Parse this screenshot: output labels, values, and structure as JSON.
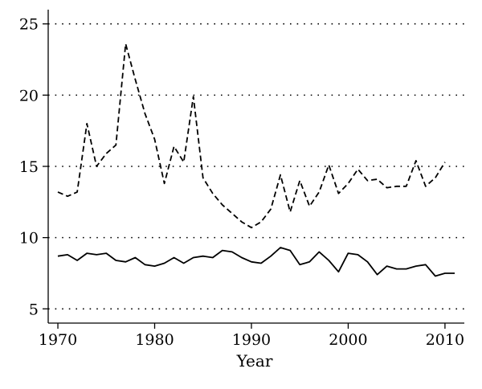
{
  "chart_data": {
    "type": "line",
    "title": "",
    "xlabel": "Year",
    "ylabel": "",
    "xlim": [
      1969,
      2012
    ],
    "ylim": [
      4,
      26
    ],
    "x_ticks": [
      1970,
      1980,
      1990,
      2000,
      2010
    ],
    "y_ticks": [
      5,
      10,
      15,
      20,
      25
    ],
    "x_tick_labels": [
      "1970",
      "1980",
      "1990",
      "2000",
      "2010"
    ],
    "y_tick_labels": [
      "5",
      "10",
      "15",
      "20",
      "25"
    ],
    "grid": "horizontal dotted",
    "legend": "none",
    "x": [
      1970,
      1971,
      1972,
      1973,
      1974,
      1975,
      1976,
      1977,
      1978,
      1979,
      1980,
      1981,
      1982,
      1983,
      1984,
      1985,
      1986,
      1987,
      1988,
      1989,
      1990,
      1991,
      1992,
      1993,
      1994,
      1995,
      1996,
      1997,
      1998,
      1999,
      2000,
      2001,
      2002,
      2003,
      2004,
      2005,
      2006,
      2007,
      2008,
      2009,
      2010,
      2011
    ],
    "series": [
      {
        "style": "dashed",
        "color": "#000000",
        "values": [
          13.2,
          12.9,
          13.2,
          18.0,
          15.0,
          15.9,
          16.5,
          23.6,
          21.1,
          18.7,
          16.9,
          13.8,
          16.4,
          15.3,
          19.9,
          14.2,
          13.1,
          12.3,
          11.7,
          11.1,
          10.7,
          11.1,
          12.0,
          14.4,
          11.8,
          14.0,
          12.2,
          13.2,
          15.1,
          13.1,
          13.8,
          14.8,
          14.0,
          14.1,
          13.5,
          13.6,
          13.6,
          15.4,
          13.6,
          14.2,
          15.3,
          null
        ]
      },
      {
        "style": "solid",
        "color": "#000000",
        "values": [
          8.7,
          8.8,
          8.4,
          8.9,
          8.8,
          8.9,
          8.4,
          8.3,
          8.6,
          8.1,
          8.0,
          8.2,
          8.6,
          8.2,
          8.6,
          8.7,
          8.6,
          9.1,
          9.0,
          8.6,
          8.3,
          8.2,
          8.7,
          9.3,
          9.1,
          8.1,
          8.3,
          9.0,
          8.4,
          7.6,
          8.9,
          8.8,
          8.3,
          7.4,
          8.0,
          7.8,
          7.8,
          8.0,
          8.1,
          7.3,
          7.5,
          7.5
        ]
      }
    ]
  }
}
